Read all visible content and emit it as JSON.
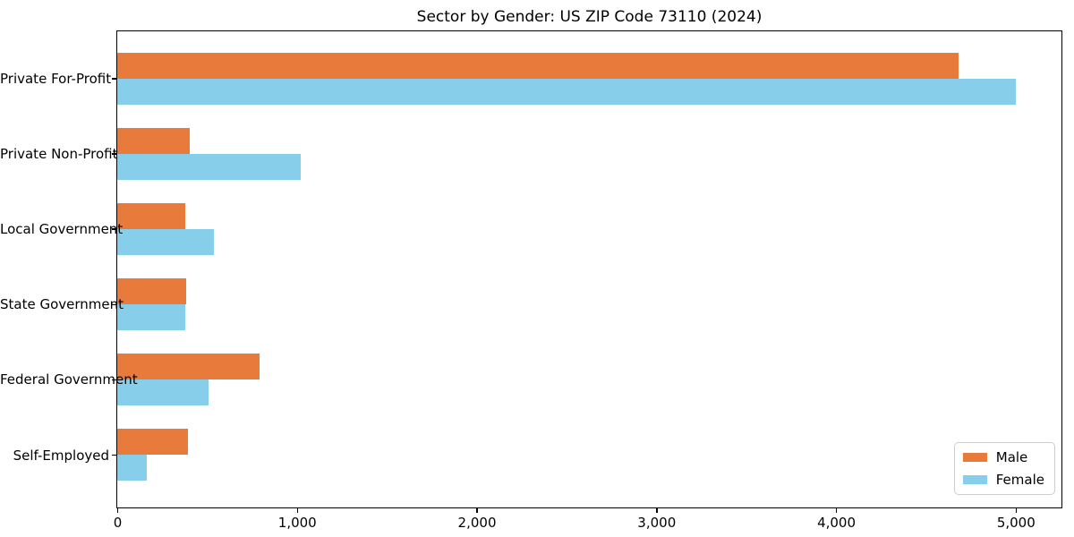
{
  "chart_data": {
    "type": "bar",
    "orientation": "horizontal",
    "title": "Sector by Gender: US ZIP Code 73110 (2024)",
    "xlabel": "",
    "ylabel": "",
    "grid": false,
    "legend_position": "lower right",
    "categories": [
      "Private For-Profit",
      "Private Non-Profit",
      "Local Government",
      "State Government",
      "Federal Government",
      "Self-Employed"
    ],
    "series": [
      {
        "name": "Male",
        "color": "#e87a3c",
        "values": [
          4680,
          405,
          380,
          385,
          790,
          395
        ]
      },
      {
        "name": "Female",
        "color": "#87ceeb",
        "values": [
          5000,
          1020,
          540,
          380,
          510,
          165
        ]
      }
    ],
    "xlim": [
      0,
      5250
    ],
    "x_ticks": [
      0,
      1000,
      2000,
      3000,
      4000,
      5000
    ],
    "x_tick_labels": [
      "0",
      "1,000",
      "2,000",
      "3,000",
      "4,000",
      "5,000"
    ]
  }
}
